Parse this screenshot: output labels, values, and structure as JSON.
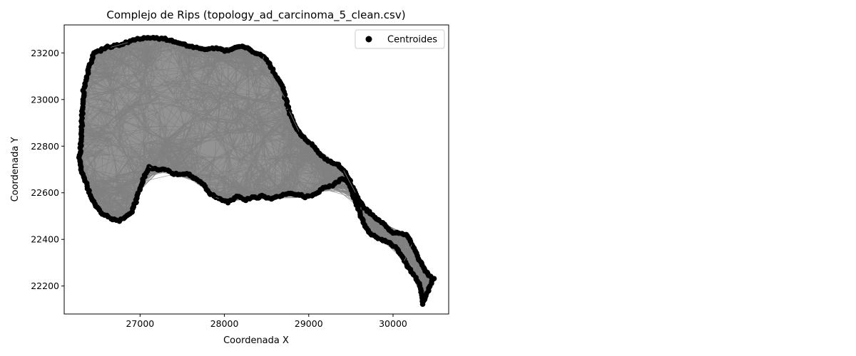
{
  "chart_data": {
    "type": "scatter",
    "title": "Complejo de Rips (topology_ad_carcinoma_5_clean.csv)",
    "xlabel": "Coordenada X",
    "ylabel": "Coordenada Y",
    "xlim": [
      26100,
      30660
    ],
    "ylim": [
      22080,
      23320
    ],
    "xticks": [
      "27000",
      "28000",
      "29000",
      "30000"
    ],
    "xtick_values": [
      27000,
      28000,
      29000,
      30000
    ],
    "yticks": [
      "22200",
      "22400",
      "22600",
      "22800",
      "23000",
      "23200"
    ],
    "ytick_values": [
      22200,
      22400,
      22600,
      22800,
      23000,
      23200
    ],
    "grid": false,
    "legend": {
      "placement": "upper-right",
      "entries": [
        "Centroides"
      ]
    },
    "colors": {
      "points": "#000000",
      "edges": "#808080",
      "frame": "#000000"
    },
    "series": [
      {
        "name": "Centroides",
        "boundary_x": [
          26290,
          26310,
          26330,
          26390,
          26450,
          26530,
          26620,
          26700,
          26800,
          26880,
          26940,
          27020,
          27100,
          27170,
          27300,
          27400,
          27500,
          27560,
          27640,
          27700,
          27760,
          27800,
          27850,
          27900,
          27950,
          28000,
          28050,
          28100,
          28180,
          28250,
          28300,
          28360,
          28450,
          28500,
          28600,
          28680,
          28720,
          28780,
          28850,
          28900,
          28960,
          29030,
          29100,
          29150,
          29210,
          29280,
          29350,
          29400,
          29450,
          29500,
          29550,
          29600,
          29680,
          29730,
          29800,
          29880,
          29940,
          30000,
          30100,
          30150,
          30200,
          30250,
          30300,
          30360,
          30400,
          30440,
          30480,
          30440,
          30390,
          30360,
          30330,
          30280,
          30200,
          30150,
          30100,
          30050,
          29980,
          29940,
          29900,
          29860,
          29800,
          29750,
          29700,
          29650,
          29600,
          29550,
          29500,
          29480,
          29450,
          29400,
          29350,
          29280,
          29180,
          29100,
          29030,
          28950,
          28920,
          28850,
          28780,
          28700,
          28600,
          28550,
          28500,
          28450,
          28400,
          28330,
          28250,
          28200,
          28150,
          28100,
          28050,
          27980,
          27900,
          27820,
          27740,
          27660,
          27580,
          27500,
          27400,
          27300,
          27200,
          27100,
          27030,
          26980,
          26950,
          26900,
          26850,
          26800,
          26750,
          26700,
          26650,
          26600,
          26550,
          26500,
          26450,
          26400,
          26360,
          26320,
          26300,
          26280,
          26290
        ],
        "boundary_y": [
          22770,
          22900,
          23040,
          23130,
          23200,
          23210,
          23225,
          23230,
          23240,
          23250,
          23258,
          23262,
          23263,
          23263,
          23260,
          23250,
          23240,
          23230,
          23225,
          23220,
          23215,
          23215,
          23220,
          23220,
          23215,
          23210,
          23210,
          23220,
          23225,
          23225,
          23215,
          23200,
          23190,
          23170,
          23110,
          23060,
          23010,
          22940,
          22880,
          22850,
          22830,
          22810,
          22780,
          22760,
          22740,
          22730,
          22720,
          22700,
          22680,
          22640,
          22600,
          22560,
          22530,
          22510,
          22490,
          22470,
          22445,
          22430,
          22425,
          22420,
          22400,
          22360,
          22320,
          22280,
          22260,
          22240,
          22230,
          22200,
          22160,
          22125,
          22190,
          22230,
          22270,
          22300,
          22330,
          22360,
          22380,
          22390,
          22395,
          22400,
          22410,
          22420,
          22440,
          22470,
          22520,
          22570,
          22610,
          22640,
          22650,
          22660,
          22650,
          22630,
          22620,
          22600,
          22590,
          22580,
          22590,
          22590,
          22600,
          22590,
          22580,
          22575,
          22580,
          22590,
          22580,
          22580,
          22570,
          22580,
          22585,
          22570,
          22560,
          22570,
          22580,
          22600,
          22640,
          22660,
          22680,
          22680,
          22680,
          22700,
          22700,
          22710,
          22650,
          22600,
          22560,
          22520,
          22500,
          22490,
          22480,
          22485,
          22490,
          22500,
          22510,
          22530,
          22560,
          22600,
          22640,
          22680,
          22700,
          22740,
          22770
        ]
      }
    ]
  }
}
